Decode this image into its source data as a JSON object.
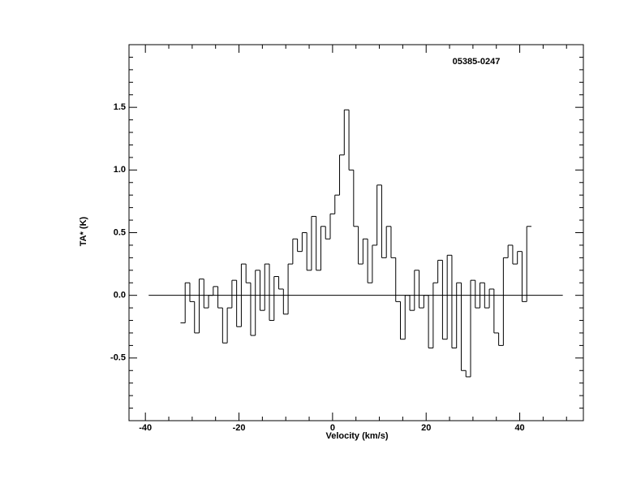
{
  "chart_data": {
    "type": "step",
    "annotation": "05385-0247",
    "xlabel": "Velocity (km/s)",
    "ylabel": "TA* (K)",
    "x": [
      -32,
      -31,
      -30,
      -29,
      -28,
      -27,
      -26,
      -25,
      -24,
      -23,
      -22,
      -21,
      -20,
      -19,
      -18,
      -17,
      -16,
      -15,
      -14,
      -13,
      -12,
      -11,
      -10,
      -9,
      -8,
      -7,
      -6,
      -5,
      -4,
      -3,
      -2,
      -1,
      0,
      1,
      2,
      3,
      4,
      5,
      6,
      7,
      8,
      9,
      10,
      11,
      12,
      13,
      14,
      15,
      16,
      17,
      18,
      19,
      20,
      21,
      22,
      23,
      24,
      25,
      26,
      27,
      28,
      29,
      30,
      31,
      32,
      33,
      34,
      35,
      36,
      37,
      38,
      39,
      40,
      41,
      42
    ],
    "values": [
      -0.22,
      0.1,
      -0.05,
      -0.3,
      0.13,
      -0.1,
      0.0,
      0.07,
      -0.1,
      -0.38,
      -0.1,
      0.12,
      -0.25,
      0.25,
      0.1,
      -0.32,
      0.2,
      -0.12,
      0.25,
      -0.2,
      0.15,
      0.05,
      -0.15,
      0.25,
      0.45,
      0.35,
      0.5,
      0.2,
      0.63,
      0.2,
      0.55,
      0.45,
      0.65,
      0.8,
      1.12,
      1.48,
      1.0,
      0.55,
      0.25,
      0.45,
      0.1,
      0.4,
      0.88,
      0.3,
      0.55,
      0.3,
      -0.05,
      -0.35,
      0.0,
      -0.12,
      0.2,
      -0.1,
      0.0,
      -0.42,
      0.1,
      0.28,
      -0.35,
      0.32,
      -0.42,
      0.1,
      -0.6,
      -0.65,
      0.12,
      -0.1,
      0.1,
      -0.1,
      0.05,
      -0.3,
      -0.4,
      0.3,
      0.4,
      0.25,
      0.35,
      -0.05,
      0.55
    ],
    "color": "#000000",
    "baseline": {
      "y": 0,
      "x": [
        -39.3,
        49.2
      ]
    },
    "xlim": [
      -43.5,
      53.6
    ],
    "ylim": [
      -1.0,
      2.0
    ],
    "xticks": [
      -40,
      -20,
      0,
      20,
      40
    ],
    "xminor_ticks": [
      -35,
      -30,
      -25,
      -15,
      -10,
      -5,
      5,
      10,
      15,
      25,
      30,
      35,
      45,
      50
    ],
    "yticks": [
      {
        "value": -0.5,
        "label": "-0.5"
      },
      {
        "value": 0,
        "label": "0.0"
      },
      0.5,
      {
        "value": 1,
        "label": "1.0"
      },
      1.5
    ],
    "yminor_ticks": [
      -0.9,
      -0.8,
      -0.7,
      -0.6,
      -0.4,
      -0.3,
      -0.2,
      -0.1,
      0.1,
      0.2,
      0.3,
      0.4,
      0.6,
      0.7,
      0.8,
      0.9,
      1.1,
      1.2,
      1.3,
      1.4,
      1.6,
      1.7,
      1.8,
      1.9
    ]
  }
}
